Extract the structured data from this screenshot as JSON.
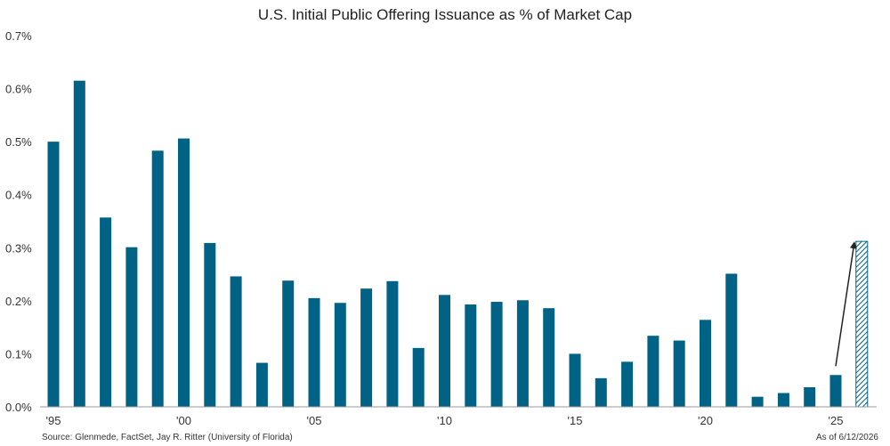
{
  "chart_data": {
    "type": "bar",
    "title": "U.S. Initial Public Offering Issuance as % of Market Cap",
    "x": [
      1995,
      1996,
      1997,
      1998,
      1999,
      2000,
      2001,
      2002,
      2003,
      2004,
      2005,
      2006,
      2007,
      2008,
      2009,
      2010,
      2011,
      2012,
      2013,
      2014,
      2015,
      2016,
      2017,
      2018,
      2019,
      2020,
      2021,
      2022,
      2023,
      2024,
      2025
    ],
    "values": [
      0.5,
      0.615,
      0.357,
      0.301,
      0.483,
      0.506,
      0.309,
      0.246,
      0.083,
      0.238,
      0.205,
      0.196,
      0.223,
      0.237,
      0.111,
      0.211,
      0.193,
      0.198,
      0.201,
      0.186,
      0.1,
      0.054,
      0.085,
      0.134,
      0.125,
      0.164,
      0.251,
      0.019,
      0.026,
      0.037,
      0.06
    ],
    "projected": {
      "x": 2026,
      "value": 0.312
    },
    "x_tick_values": [
      1995,
      2000,
      2005,
      2010,
      2015,
      2020,
      2025
    ],
    "x_tick_labels": [
      "'95",
      "'00",
      "'05",
      "'10",
      "'15",
      "'20",
      "'25"
    ],
    "y_tick_values": [
      0,
      0.1,
      0.2,
      0.3,
      0.4,
      0.5,
      0.6,
      0.7
    ],
    "y_tick_labels": [
      "0.0%",
      "0.1%",
      "0.2%",
      "0.3%",
      "0.4%",
      "0.5%",
      "0.6%",
      "0.7%"
    ],
    "ylim": [
      0,
      0.7
    ],
    "xlabel": "",
    "ylabel": "",
    "grid": false,
    "annotation": "arrow from 2025 bar to projected 2026 bar",
    "colors": {
      "bar": "#006285",
      "projected_hatch": "#006285",
      "axis": "#999999",
      "arrow": "#222222",
      "text": "#333333"
    }
  },
  "footer": {
    "source": "Source: Glenmede, FactSet, Jay R. Ritter (University of Florida)",
    "as_of": "As of 6/12/2026"
  }
}
